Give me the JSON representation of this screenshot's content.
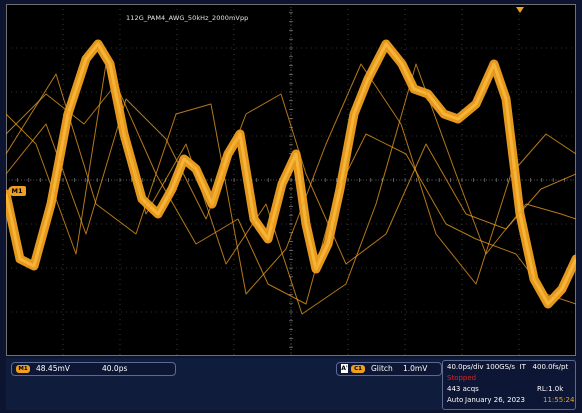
{
  "waveform": {
    "title": "112G_PAM4_AWG_50kHz_2000mVpp",
    "trace_color": "#f0a020",
    "grid_color": "#606060"
  },
  "channel": {
    "ground_marker_label": "M1",
    "badge": "M1",
    "scale": "48.45mV",
    "offset": "40.0ps"
  },
  "trigger": {
    "mode_badge": "A'",
    "source_badge": "C1",
    "type": "Glitch",
    "level": "1.0mV"
  },
  "acquisition": {
    "timebase": "40.0ps/div",
    "sample_rate": "100GS/s",
    "mode": "IT",
    "resolution": "400.0fs/pt",
    "state": "Stopped",
    "acqs": "443 acqs",
    "record_length": "RL:1.0k",
    "trigger_mode": "Auto",
    "date": "January 26, 2023",
    "time": "11:55:24"
  }
}
